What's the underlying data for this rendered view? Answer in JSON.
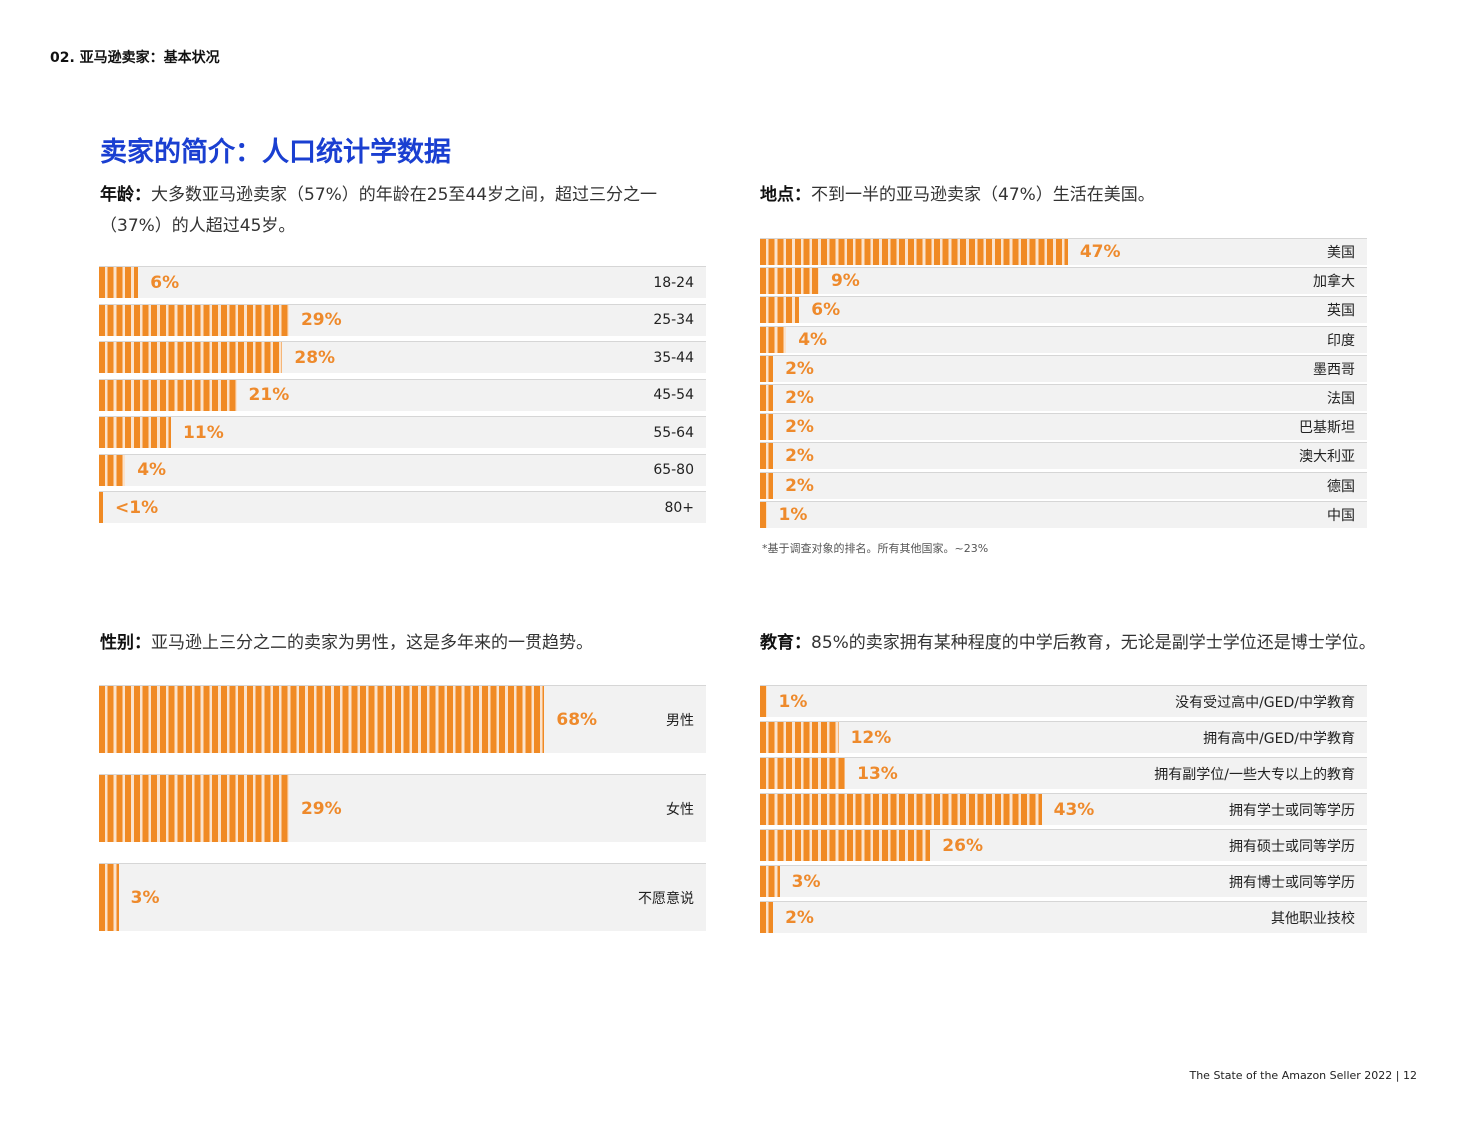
{
  "section": "02. 亚马逊卖家：基本状况",
  "title": "卖家的简介：人口统计学数据",
  "age": {
    "label": "年龄：",
    "text": "大多数亚马逊卖家（57%）的年龄在25至44岁之间，超过三分之一（37%）的人超过45岁。",
    "rows": [
      {
        "cat": "18-24",
        "val": "6%",
        "v": 6
      },
      {
        "cat": "25-34",
        "val": "29%",
        "v": 29
      },
      {
        "cat": "35-44",
        "val": "28%",
        "v": 28
      },
      {
        "cat": "45-54",
        "val": "21%",
        "v": 21
      },
      {
        "cat": "55-64",
        "val": "11%",
        "v": 11
      },
      {
        "cat": "65-80",
        "val": "4%",
        "v": 4
      },
      {
        "cat": "80+",
        "val": "<1%",
        "v": 0.6
      }
    ]
  },
  "location": {
    "label": "地点：",
    "text": "不到一半的亚马逊卖家（47%）生活在美国。",
    "rows": [
      {
        "cat": "美国",
        "val": "47%",
        "v": 47
      },
      {
        "cat": "加拿大",
        "val": "9%",
        "v": 9
      },
      {
        "cat": "英国",
        "val": "6%",
        "v": 6
      },
      {
        "cat": "印度",
        "val": "4%",
        "v": 4
      },
      {
        "cat": "墨西哥",
        "val": "2%",
        "v": 2
      },
      {
        "cat": "法国",
        "val": "2%",
        "v": 2
      },
      {
        "cat": "巴基斯坦",
        "val": "2%",
        "v": 2
      },
      {
        "cat": "澳大利亚",
        "val": "2%",
        "v": 2
      },
      {
        "cat": "德国",
        "val": "2%",
        "v": 2
      },
      {
        "cat": "中国",
        "val": "1%",
        "v": 1
      }
    ],
    "note": "*基于调查对象的排名。所有其他国家。~23%"
  },
  "gender": {
    "label": "性别：",
    "text": "亚马逊上三分之二的卖家为男性，这是多年来的一贯趋势。",
    "rows": [
      {
        "cat": "男性",
        "val": "68%",
        "v": 68
      },
      {
        "cat": "女性",
        "val": "29%",
        "v": 29
      },
      {
        "cat": "不愿意说",
        "val": "3%",
        "v": 3
      }
    ]
  },
  "education": {
    "label": "教育：",
    "text": "85%的卖家拥有某种程度的中学后教育，无论是副学士学位还是博士学位。",
    "rows": [
      {
        "cat": "没有受过高中/GED/中学教育",
        "val": "1%",
        "v": 1
      },
      {
        "cat": "拥有高中/GED/中学教育",
        "val": "12%",
        "v": 12
      },
      {
        "cat": "拥有副学位/一些大专以上的教育",
        "val": "13%",
        "v": 13
      },
      {
        "cat": "拥有学士或同等学历",
        "val": "43%",
        "v": 43
      },
      {
        "cat": "拥有硕士或同等学历",
        "val": "26%",
        "v": 26
      },
      {
        "cat": "拥有博士或同等学历",
        "val": "3%",
        "v": 3
      },
      {
        "cat": "其他职业技校",
        "val": "2%",
        "v": 2
      }
    ]
  },
  "footer": "The State of the Amazon Seller 2022  |   12"
}
